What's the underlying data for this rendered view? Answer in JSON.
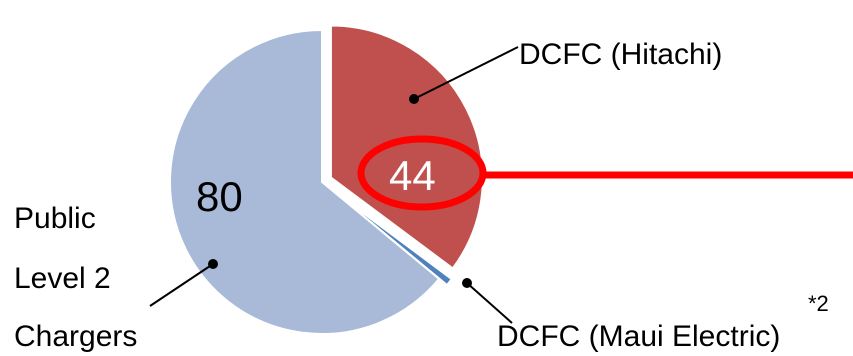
{
  "chart_data": {
    "type": "pie",
    "slices": [
      {
        "label": "DCFC (Hitachi)",
        "value": 44,
        "color": "#c0504d",
        "exploded": true
      },
      {
        "label": "DCFC (Maui Electric)",
        "value": 1,
        "color": "#4f81bd",
        "exploded": true
      },
      {
        "label": "Public Level 2 Chargers",
        "value": 80,
        "color": "#a9b9d8",
        "exploded": false
      }
    ],
    "value_labels": {
      "hitachi": "44",
      "level2": "80"
    },
    "category_labels": {
      "hitachi": "DCFC (Hitachi)",
      "maui": "DCFC (Maui Electric)",
      "level2_lines": [
        "Public",
        "Level 2",
        "Chargers"
      ]
    },
    "footnote": "*2",
    "highlight": {
      "target": "44",
      "color": "#ff0000"
    },
    "legend": "none"
  }
}
